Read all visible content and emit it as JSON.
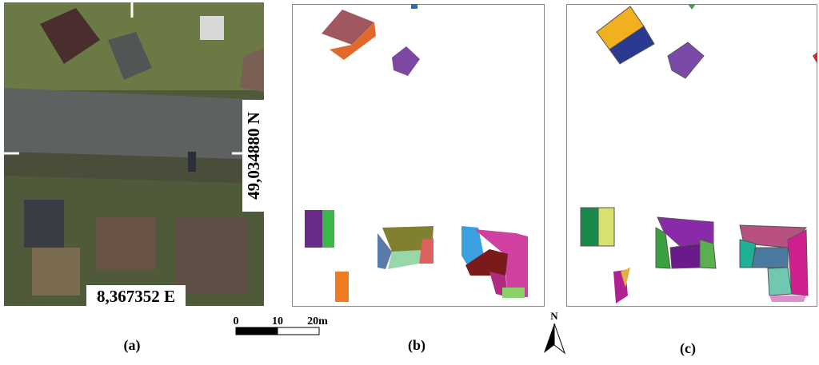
{
  "panels": {
    "a": {
      "label": "(a)",
      "easting": "8,367352 E",
      "northing": "49,034880 N"
    },
    "b": {
      "label": "(b)"
    },
    "c": {
      "label": "(c)"
    }
  },
  "scale_bar": {
    "ticks": [
      "0",
      "10",
      "20m"
    ]
  },
  "north_arrow": {
    "label": "N"
  }
}
